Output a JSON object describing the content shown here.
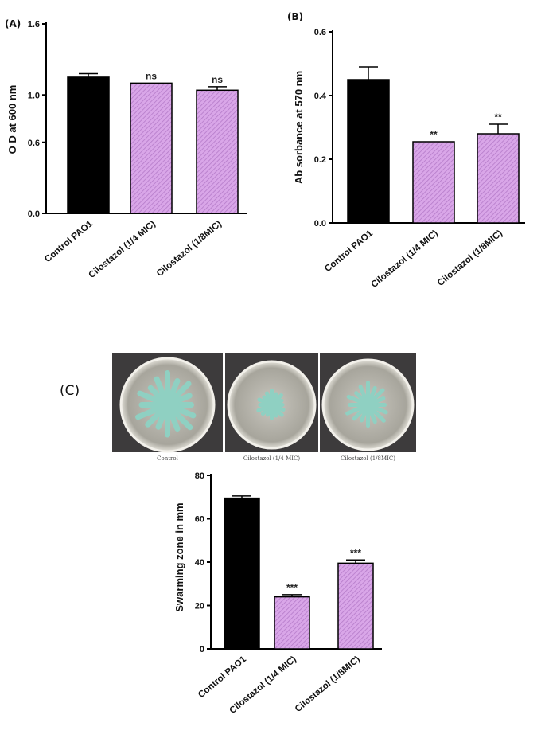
{
  "panels": {
    "a": "(A)",
    "b": "(B)",
    "c": "(C)"
  },
  "photos": [
    {
      "caption": "Control",
      "growth": "large"
    },
    {
      "caption": "Cilostazol (1/4 MIC)",
      "growth": "small"
    },
    {
      "caption": "Cilostazol (1/8MIC)",
      "growth": "medium"
    }
  ],
  "colors": {
    "control_bar": "#000000",
    "treatment_bar": "#d9a6e8",
    "hatch": "#b57bc9",
    "plate_bg": "#3d3b3c",
    "swarm": "#8fd0c2"
  },
  "chart_data": [
    {
      "id": "A",
      "type": "bar",
      "ylabel": "O D at 600 nm",
      "ylim": [
        0.0,
        1.6
      ],
      "yticks": [
        "0.0",
        "0.6",
        "1.0",
        "1.6"
      ],
      "ytick_values": [
        0.0,
        0.6,
        1.0,
        1.6
      ],
      "categories": [
        "Control PAO1",
        "Cilostazol (1/4 MIC)",
        "Cilostazol (1/8MIC)"
      ],
      "values": [
        1.15,
        1.1,
        1.04
      ],
      "errors": [
        0.03,
        0.0,
        0.03
      ],
      "significance": [
        "",
        "ns",
        "ns"
      ]
    },
    {
      "id": "B",
      "type": "bar",
      "ylabel": "Ab sorbance at 570 nm",
      "ylim": [
        0.0,
        0.6
      ],
      "yticks": [
        "0.0",
        "0.2",
        "0.4",
        "0.6"
      ],
      "ytick_values": [
        0.0,
        0.2,
        0.4,
        0.6
      ],
      "categories": [
        "Control PAO1",
        "Cilostazol (1/4 MIC)",
        "Cilostazol (1/8MIC)"
      ],
      "values": [
        0.45,
        0.255,
        0.28
      ],
      "errors": [
        0.04,
        0.0,
        0.03
      ],
      "significance": [
        "",
        "**",
        "**"
      ]
    },
    {
      "id": "C",
      "type": "bar",
      "ylabel": "Swarming zone in mm",
      "ylim": [
        0,
        80
      ],
      "yticks": [
        "0",
        "20",
        "40",
        "60",
        "80"
      ],
      "ytick_values": [
        0,
        20,
        40,
        60,
        80
      ],
      "categories": [
        "Control PAO1",
        "Cilostazol (1/4 MIC)",
        "Cilostazol (1/8MIC)"
      ],
      "values": [
        69.5,
        24,
        39.5
      ],
      "errors": [
        1,
        1,
        1.5
      ],
      "significance": [
        "",
        "***",
        "***"
      ]
    }
  ]
}
